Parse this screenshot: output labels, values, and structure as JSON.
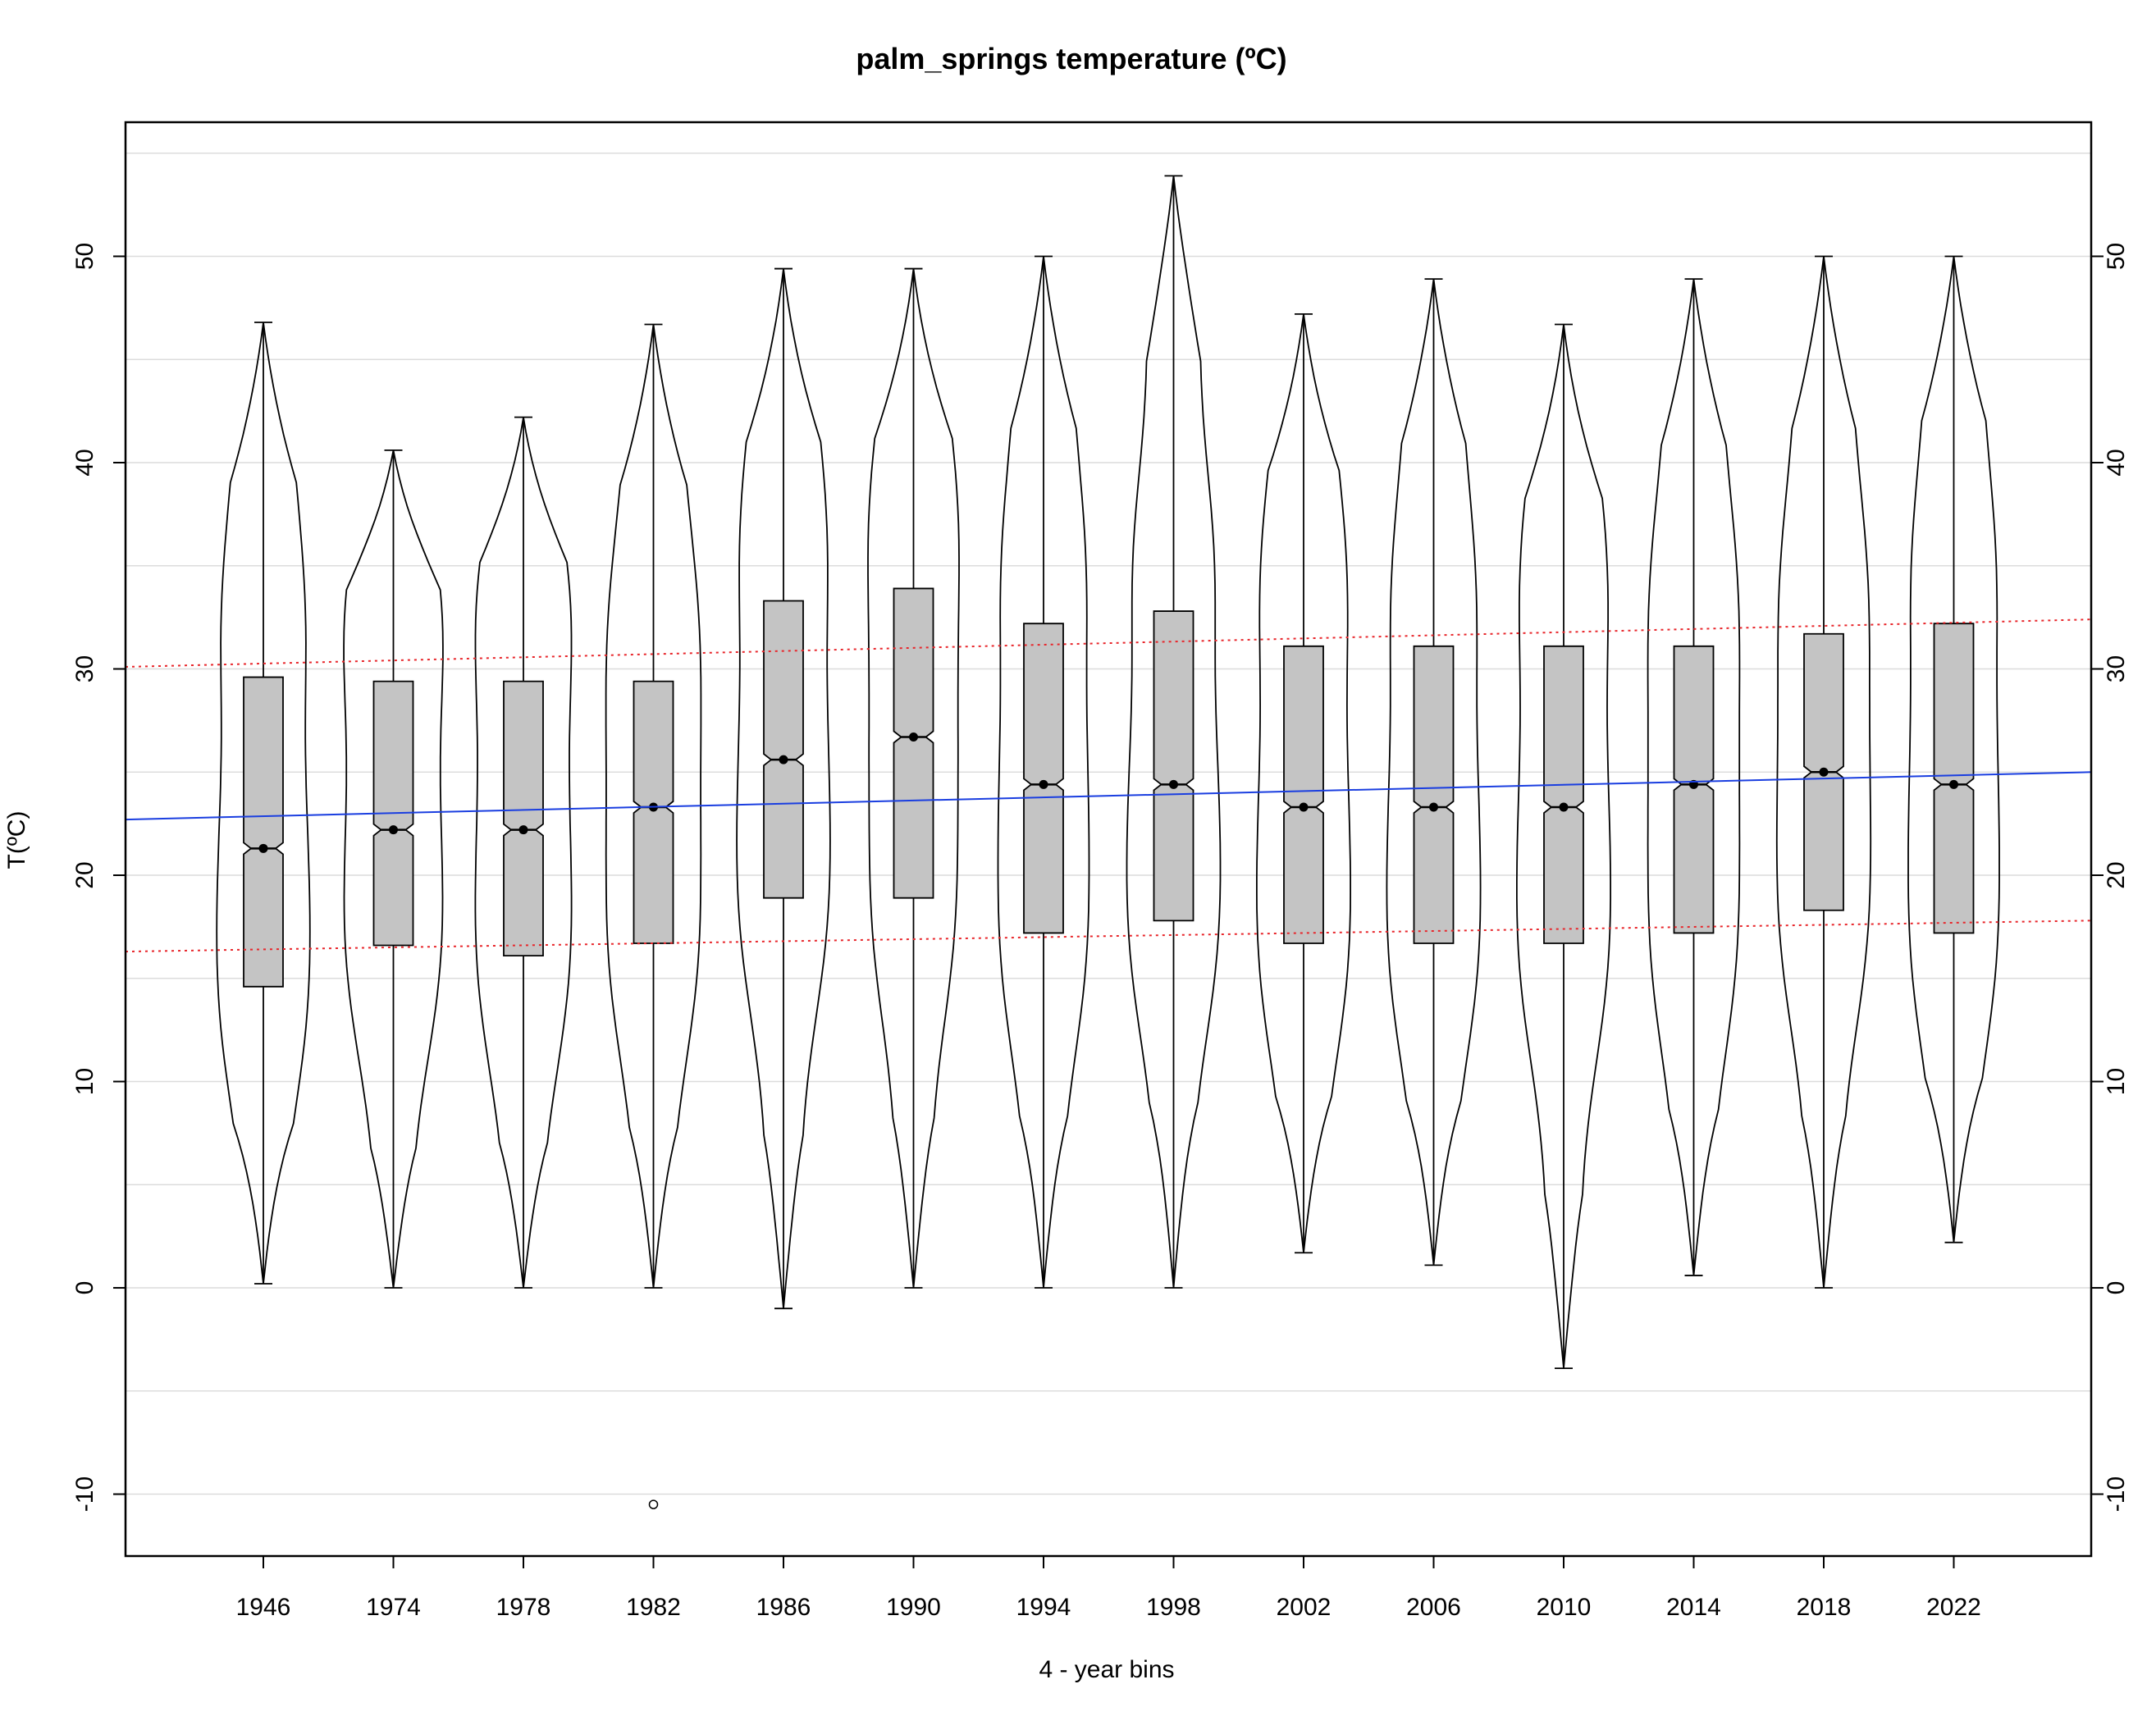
{
  "chart_data": {
    "type": "boxplot",
    "title": "palm_springs temperature (ºC)",
    "xlabel": "4 - year bins",
    "ylabel": "T(ºC)",
    "ylim": [
      -13,
      56.5
    ],
    "yticks": [
      -10,
      0,
      10,
      20,
      30,
      40,
      50
    ],
    "grid": true,
    "categories": [
      "1946",
      "1974",
      "1978",
      "1982",
      "1986",
      "1990",
      "1994",
      "1998",
      "2002",
      "2006",
      "2010",
      "2014",
      "2018",
      "2022"
    ],
    "boxes": [
      {
        "min": 0.2,
        "q1": 14.6,
        "median": 21.3,
        "q3": 29.6,
        "max": 46.8,
        "outliers": []
      },
      {
        "min": 0.0,
        "q1": 16.6,
        "median": 22.2,
        "q3": 29.4,
        "max": 40.6,
        "outliers": []
      },
      {
        "min": 0.0,
        "q1": 16.1,
        "median": 22.2,
        "q3": 29.4,
        "max": 42.2,
        "outliers": []
      },
      {
        "min": 0.0,
        "q1": 16.7,
        "median": 23.3,
        "q3": 29.4,
        "max": 46.7,
        "outliers": [
          -10.5
        ]
      },
      {
        "min": -1.0,
        "q1": 18.9,
        "median": 25.6,
        "q3": 33.3,
        "max": 49.4,
        "outliers": []
      },
      {
        "min": 0.0,
        "q1": 18.9,
        "median": 26.7,
        "q3": 33.9,
        "max": 49.4,
        "outliers": []
      },
      {
        "min": 0.0,
        "q1": 17.2,
        "median": 24.4,
        "q3": 32.2,
        "max": 50.0,
        "outliers": []
      },
      {
        "min": 0.0,
        "q1": 17.8,
        "median": 24.4,
        "q3": 32.8,
        "max": 53.9,
        "outliers": []
      },
      {
        "min": 1.7,
        "q1": 16.7,
        "median": 23.3,
        "q3": 31.1,
        "max": 47.2,
        "outliers": []
      },
      {
        "min": 1.1,
        "q1": 16.7,
        "median": 23.3,
        "q3": 31.1,
        "max": 48.9,
        "outliers": []
      },
      {
        "min": -3.9,
        "q1": 16.7,
        "median": 23.3,
        "q3": 31.1,
        "max": 46.7,
        "outliers": []
      },
      {
        "min": 0.6,
        "q1": 17.2,
        "median": 24.4,
        "q3": 31.1,
        "max": 48.9,
        "outliers": []
      },
      {
        "min": 0.0,
        "q1": 18.3,
        "median": 25.0,
        "q3": 31.7,
        "max": 50.0,
        "outliers": []
      },
      {
        "min": 2.2,
        "q1": 17.2,
        "median": 24.4,
        "q3": 32.2,
        "max": 50.0,
        "outliers": []
      }
    ],
    "trend_lines": [
      {
        "style": "solid",
        "color": "#1a3ee0",
        "y_start": 22.7,
        "y_end": 25.0
      },
      {
        "style": "dotted",
        "color": "#e8262b",
        "y_start": 30.1,
        "y_end": 32.4
      },
      {
        "style": "dotted",
        "color": "#e8262b",
        "y_start": 16.3,
        "y_end": 17.8
      }
    ],
    "box_fill": "#c4c4c4"
  }
}
